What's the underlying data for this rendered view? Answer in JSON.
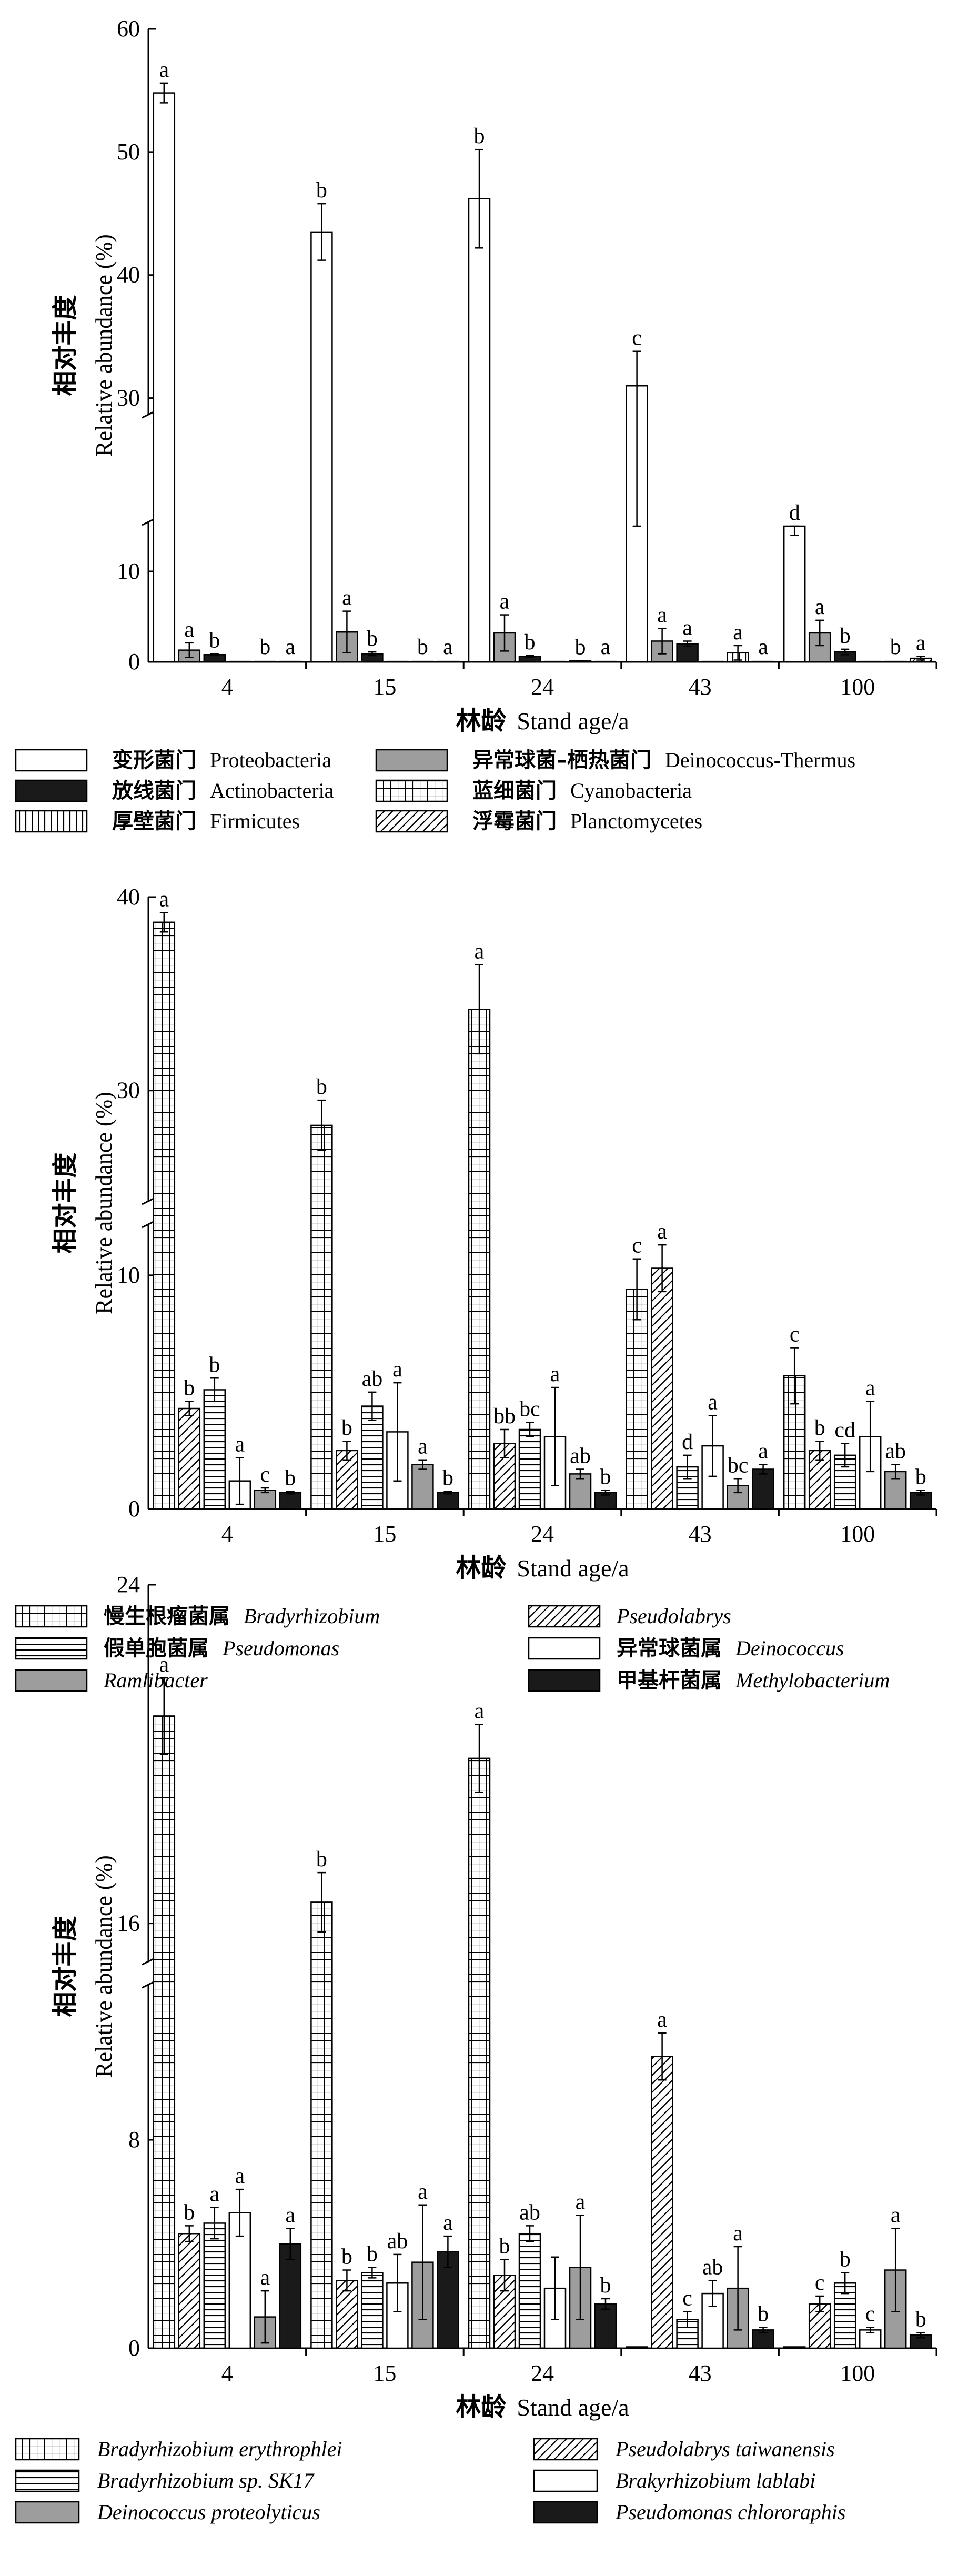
{
  "chart_data": [
    {
      "type": "bar",
      "ylabel_cn": "相对丰度",
      "ylabel_en": "Relative abundance (%)",
      "xlabel_cn": "林龄",
      "xlabel_en": "Stand age/a",
      "categories": [
        "4",
        "15",
        "24",
        "43",
        "100"
      ],
      "axis_break": true,
      "y_lower_range": [
        0,
        15
      ],
      "y_upper_range": [
        29,
        60
      ],
      "lower_ticks": [
        0,
        10
      ],
      "upper_ticks": [
        30,
        40,
        50,
        60
      ],
      "series": [
        {
          "name_cn": "变形菌门",
          "name_en": "Proteobacteria",
          "pattern": "white",
          "values": [
            54.8,
            43.5,
            46.2,
            31.0,
            15.5
          ],
          "errors": [
            0.8,
            2.3,
            4.0,
            2.8,
            1.5
          ],
          "labels": [
            "a",
            "b",
            "b",
            "c",
            "d"
          ]
        },
        {
          "name_cn": "异常球菌–栖热菌门",
          "name_en": "Deinococcus-Thermus",
          "pattern": "grey",
          "values": [
            1.3,
            3.3,
            3.2,
            2.3,
            3.2
          ],
          "errors": [
            0.8,
            2.3,
            2.0,
            1.4,
            1.4
          ],
          "labels": [
            "a",
            "a",
            "a",
            "a",
            "a"
          ]
        },
        {
          "name_cn": "放线菌门",
          "name_en": "Actinobacteria",
          "pattern": "black",
          "values": [
            0.8,
            0.9,
            0.6,
            2.0,
            1.1
          ],
          "errors": [
            0.1,
            0.2,
            0.1,
            0.3,
            0.3
          ],
          "labels": [
            "b",
            "b",
            "b",
            "a",
            "b"
          ]
        },
        {
          "name_cn": "蓝细菌门",
          "name_en": "Cyanobacteria",
          "pattern": "grid",
          "values": [
            0.05,
            0.05,
            0.05,
            0.05,
            0.05
          ],
          "errors": [
            0,
            0,
            0,
            0,
            0
          ],
          "labels": [
            "",
            "",
            "",
            "",
            ""
          ]
        },
        {
          "name_cn": "厚壁菌门",
          "name_en": "Firmicutes",
          "pattern": "vlines",
          "values": [
            0.05,
            0.05,
            0.1,
            1.0,
            0.05
          ],
          "errors": [
            0,
            0,
            0.05,
            0.8,
            0
          ],
          "labels": [
            "b",
            "b",
            "b",
            "a",
            "b"
          ]
        },
        {
          "name_cn": "浮霉菌门",
          "name_en": "Planctomycetes",
          "pattern": "diag",
          "values": [
            0.05,
            0.05,
            0.05,
            0.05,
            0.4
          ],
          "errors": [
            0,
            0,
            0,
            0,
            0.2
          ],
          "labels": [
            "a",
            "a",
            "a",
            "a",
            "a"
          ]
        }
      ],
      "legend": [
        {
          "name_cn": "变形菌门",
          "name_en": "Proteobacteria",
          "pattern": "white",
          "italic": false
        },
        {
          "name_cn": "异常球菌–栖热菌门",
          "name_en": "Deinococcus-Thermus",
          "pattern": "grey",
          "italic": false
        },
        {
          "name_cn": "放线菌门",
          "name_en": "Actinobacteria",
          "pattern": "black",
          "italic": false
        },
        {
          "name_cn": "蓝细菌门",
          "name_en": "Cyanobacteria",
          "pattern": "grid",
          "italic": false
        },
        {
          "name_cn": "厚壁菌门",
          "name_en": "Firmicutes",
          "pattern": "vlines",
          "italic": false
        },
        {
          "name_cn": "浮霉菌门",
          "name_en": "Planctomycetes",
          "pattern": "diag",
          "italic": false
        }
      ]
    },
    {
      "type": "bar",
      "ylabel_cn": "相对丰度",
      "ylabel_en": "Relative abundance (%)",
      "xlabel_cn": "林龄",
      "xlabel_en": "Stand age/a",
      "categories": [
        "4",
        "15",
        "24",
        "43",
        "100"
      ],
      "axis_break": true,
      "y_lower_range": [
        0,
        12
      ],
      "y_upper_range": [
        24.5,
        40
      ],
      "lower_ticks": [
        0,
        10
      ],
      "upper_ticks": [
        30,
        40
      ],
      "series": [
        {
          "name_cn": "慢生根瘤菌属",
          "name_en": "Bradyrhizobium",
          "pattern": "grid",
          "values": [
            38.7,
            28.2,
            34.2,
            9.4,
            5.7
          ],
          "errors": [
            0.5,
            1.3,
            2.3,
            1.3,
            1.2
          ],
          "labels": [
            "a",
            "b",
            "a",
            "c",
            "c"
          ]
        },
        {
          "name_cn": "",
          "name_en": "Pseudolabrys",
          "pattern": "diag",
          "values": [
            4.3,
            2.5,
            2.8,
            10.3,
            2.5
          ],
          "errors": [
            0.3,
            0.4,
            0.6,
            1.0,
            0.4
          ],
          "labels": [
            "b",
            "b",
            "bb",
            "a",
            "b"
          ]
        },
        {
          "name_cn": "假单胞菌属",
          "name_en": "Pseudomonas",
          "pattern": "hlines",
          "values": [
            5.1,
            4.4,
            3.4,
            1.8,
            2.3
          ],
          "errors": [
            0.5,
            0.6,
            0.3,
            0.5,
            0.5
          ],
          "labels": [
            "b",
            "ab",
            "bc",
            "d",
            "cd"
          ]
        },
        {
          "name_cn": "异常球菌属",
          "name_en": "Deinococcus",
          "pattern": "white",
          "values": [
            1.2,
            3.3,
            3.1,
            2.7,
            3.1
          ],
          "errors": [
            1.0,
            2.1,
            2.1,
            1.3,
            1.5
          ],
          "labels": [
            "a",
            "a",
            "a",
            "a",
            "a"
          ]
        },
        {
          "name_cn": "",
          "name_en": "Ramlibacter",
          "pattern": "grey",
          "values": [
            0.8,
            1.9,
            1.5,
            1.0,
            1.6
          ],
          "errors": [
            0.1,
            0.2,
            0.2,
            0.3,
            0.3
          ],
          "labels": [
            "c",
            "a",
            "ab",
            "bc",
            "ab"
          ]
        },
        {
          "name_cn": "甲基杆菌属",
          "name_en": "Methylobacterium",
          "pattern": "black",
          "values": [
            0.7,
            0.7,
            0.7,
            1.7,
            0.7
          ],
          "errors": [
            0.05,
            0.05,
            0.1,
            0.2,
            0.1
          ],
          "labels": [
            "b",
            "b",
            "b",
            "a",
            "b"
          ]
        }
      ],
      "legend": [
        {
          "name_cn": "慢生根瘤菌属",
          "name_en": "Bradyrhizobium",
          "pattern": "grid",
          "italic": true
        },
        {
          "name_cn": "",
          "name_en": "Pseudolabrys",
          "pattern": "diag",
          "italic": true
        },
        {
          "name_cn": "假单胞菌属",
          "name_en": "Pseudomonas",
          "pattern": "hlines",
          "italic": true
        },
        {
          "name_cn": "异常球菌属",
          "name_en": "Deinococcus",
          "pattern": "white",
          "italic": true
        },
        {
          "name_cn": "",
          "name_en": "Ramlibacter",
          "pattern": "grey",
          "italic": true
        },
        {
          "name_cn": "甲基杆菌属",
          "name_en": "Methylobacterium",
          "pattern": "black",
          "italic": true
        }
      ]
    },
    {
      "type": "bar",
      "ylabel_cn": "相对丰度",
      "ylabel_en": "Relative abundance (%)",
      "xlabel_cn": "林龄",
      "xlabel_en": "Stand age/a",
      "categories": [
        "4",
        "15",
        "24",
        "43",
        "100"
      ],
      "axis_break": true,
      "y_lower_range": [
        0,
        13.8
      ],
      "y_upper_range": [
        15.2,
        24
      ],
      "lower_ticks": [
        0,
        8
      ],
      "upper_ticks": [
        16,
        24
      ],
      "series": [
        {
          "name_cn": "",
          "name_en": "Bradyrhizobium erythrophlei",
          "pattern": "grid",
          "values": [
            20.9,
            16.5,
            19.9,
            0.05,
            0.05
          ],
          "errors": [
            0.9,
            0.7,
            0.8,
            0,
            0
          ],
          "labels": [
            "a",
            "b",
            "a",
            "",
            ""
          ]
        },
        {
          "name_cn": "",
          "name_en": "Pseudolabrys taiwanensis",
          "pattern": "diag",
          "values": [
            4.4,
            2.6,
            2.8,
            11.2,
            1.7
          ],
          "errors": [
            0.3,
            0.4,
            0.6,
            0.9,
            0.3
          ],
          "labels": [
            "b",
            "b",
            "b",
            "a",
            "c"
          ]
        },
        {
          "name_cn": "",
          "name_en": "Bradyrhizobium sp. SK17",
          "pattern": "hlines",
          "values": [
            4.8,
            2.9,
            4.4,
            1.1,
            2.5
          ],
          "errors": [
            0.6,
            0.2,
            0.3,
            0.3,
            0.4
          ],
          "labels": [
            "a",
            "b",
            "ab",
            "c",
            "b"
          ]
        },
        {
          "name_cn": "",
          "name_en": "Brakyrhizobium lablabi",
          "pattern": "white",
          "values": [
            5.2,
            2.5,
            2.3,
            2.1,
            0.7
          ],
          "errors": [
            0.9,
            1.1,
            1.2,
            0.5,
            0.1
          ],
          "labels": [
            "a",
            "ab",
            "",
            "ab",
            "c"
          ]
        },
        {
          "name_cn": "",
          "name_en": "Deinococcus proteolyticus",
          "pattern": "grey",
          "values": [
            1.2,
            3.3,
            3.1,
            2.3,
            3.0
          ],
          "errors": [
            1.0,
            2.2,
            2.0,
            1.6,
            1.6
          ],
          "labels": [
            "a",
            "a",
            "a",
            "a",
            "a"
          ]
        },
        {
          "name_cn": "",
          "name_en": "Pseudomonas chlororaphis",
          "pattern": "black",
          "values": [
            4.0,
            3.7,
            1.7,
            0.7,
            0.5
          ],
          "errors": [
            0.6,
            0.6,
            0.2,
            0.1,
            0.1
          ],
          "labels": [
            "a",
            "a",
            "b",
            "b",
            "b"
          ]
        }
      ],
      "legend": [
        {
          "name_cn": "",
          "name_en": "Bradyrhizobium erythrophlei",
          "pattern": "grid",
          "italic": true
        },
        {
          "name_cn": "",
          "name_en": "Pseudolabrys taiwanensis",
          "pattern": "diag",
          "italic": true
        },
        {
          "name_cn": "",
          "name_en": "Bradyrhizobium sp. SK17",
          "pattern": "hlines",
          "italic": true
        },
        {
          "name_cn": "",
          "name_en": "Brakyrhizobium lablabi",
          "pattern": "white",
          "italic": true
        },
        {
          "name_cn": "",
          "name_en": "Deinococcus proteolyticus",
          "pattern": "grey",
          "italic": true
        },
        {
          "name_cn": "",
          "name_en": "Pseudomonas chlororaphis",
          "pattern": "black",
          "italic": true
        }
      ]
    }
  ]
}
